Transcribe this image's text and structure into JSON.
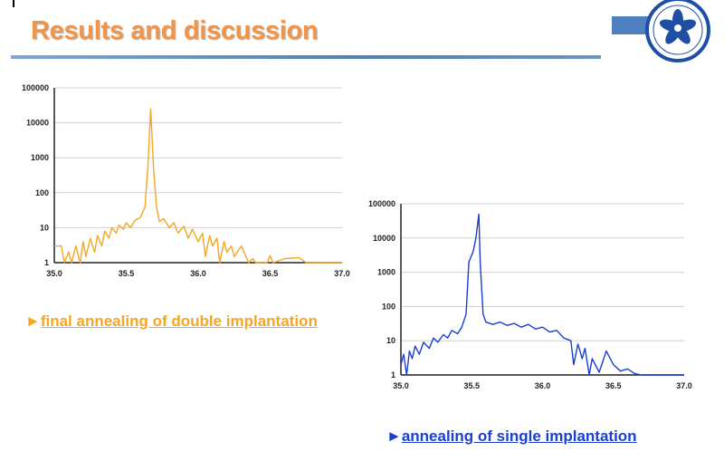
{
  "slide": {
    "title": "Results and discussion",
    "logo_text": "CHINESE ACADEMY OF SCIENCES",
    "colors": {
      "title": "#f0954a",
      "orange_series": "#f5a623",
      "blue_series": "#1a3fd1",
      "rule": "#4f7fbf"
    }
  },
  "captions": [
    {
      "marker": "►",
      "text": "final annealing of double implantation"
    },
    {
      "marker": "►",
      "text": "annealing of single implantation"
    }
  ],
  "chart_data": [
    {
      "type": "line",
      "title": "",
      "xlabel": "",
      "ylabel": "",
      "yscale": "log",
      "xlim": [
        35.0,
        37.0
      ],
      "ylim": [
        1,
        100000
      ],
      "x_ticks": [
        "35.0",
        "35.5",
        "36.0",
        "36.5",
        "37.0"
      ],
      "y_ticks": [
        "1",
        "10",
        "100",
        "1000",
        "10000",
        "100000"
      ],
      "grid": true,
      "series": [
        {
          "name": "final annealing of double implantation",
          "color": "#f5a623",
          "x": [
            35.0,
            35.05,
            35.07,
            35.1,
            35.12,
            35.15,
            35.18,
            35.2,
            35.22,
            35.25,
            35.28,
            35.3,
            35.33,
            35.35,
            35.38,
            35.4,
            35.43,
            35.45,
            35.48,
            35.5,
            35.53,
            35.56,
            35.6,
            35.63,
            35.65,
            35.67,
            35.69,
            35.71,
            35.73,
            35.76,
            35.8,
            35.83,
            35.86,
            35.9,
            35.93,
            35.96,
            36.0,
            36.03,
            36.05,
            36.08,
            36.1,
            36.13,
            36.15,
            36.18,
            36.2,
            36.23,
            36.25,
            36.3,
            36.35,
            36.38,
            36.4,
            36.48,
            36.5,
            36.52,
            36.6,
            36.7,
            36.75,
            37.0
          ],
          "y": [
            3,
            3,
            1,
            2,
            1,
            3,
            1,
            4,
            1.5,
            5,
            2,
            6,
            3,
            8,
            5,
            10,
            7,
            12,
            9,
            14,
            10,
            16,
            20,
            40,
            500,
            25000,
            500,
            40,
            15,
            18,
            10,
            14,
            7,
            11,
            5,
            9,
            4,
            7,
            1.5,
            6,
            3,
            5,
            1,
            4,
            2,
            3,
            1.5,
            3,
            1,
            1.3,
            1,
            1,
            1.6,
            1,
            1.3,
            1.4,
            1,
            1
          ]
        }
      ]
    },
    {
      "type": "line",
      "title": "",
      "xlabel": "",
      "ylabel": "",
      "yscale": "log",
      "xlim": [
        35.0,
        37.0
      ],
      "ylim": [
        1,
        100000
      ],
      "x_ticks": [
        "35.0",
        "35.5",
        "36.0",
        "36.5",
        "37.0"
      ],
      "y_ticks": [
        "1",
        "10",
        "100",
        "1000",
        "10000",
        "100000"
      ],
      "grid": true,
      "series": [
        {
          "name": "annealing of single implantation",
          "color": "#1a3fd1",
          "x": [
            35.0,
            35.02,
            35.04,
            35.06,
            35.08,
            35.1,
            35.13,
            35.16,
            35.2,
            35.23,
            35.26,
            35.3,
            35.33,
            35.36,
            35.4,
            35.43,
            35.46,
            35.48,
            35.51,
            35.53,
            35.55,
            35.56,
            35.58,
            35.6,
            35.65,
            35.7,
            35.75,
            35.8,
            35.85,
            35.9,
            35.95,
            36.0,
            36.05,
            36.1,
            36.15,
            36.2,
            36.22,
            36.25,
            36.28,
            36.3,
            36.33,
            36.35,
            36.4,
            36.45,
            36.5,
            36.55,
            36.6,
            36.65,
            36.7,
            37.0
          ],
          "y": [
            2,
            4,
            1,
            5,
            3,
            7,
            4,
            9,
            6,
            12,
            9,
            15,
            12,
            20,
            16,
            25,
            60,
            2000,
            4000,
            10000,
            50000,
            2000,
            60,
            35,
            30,
            35,
            28,
            32,
            25,
            30,
            22,
            25,
            18,
            20,
            12,
            10,
            2,
            8,
            3,
            6,
            1,
            3,
            1.2,
            5,
            2,
            1.3,
            1.5,
            1.1,
            1,
            1
          ]
        }
      ]
    }
  ]
}
